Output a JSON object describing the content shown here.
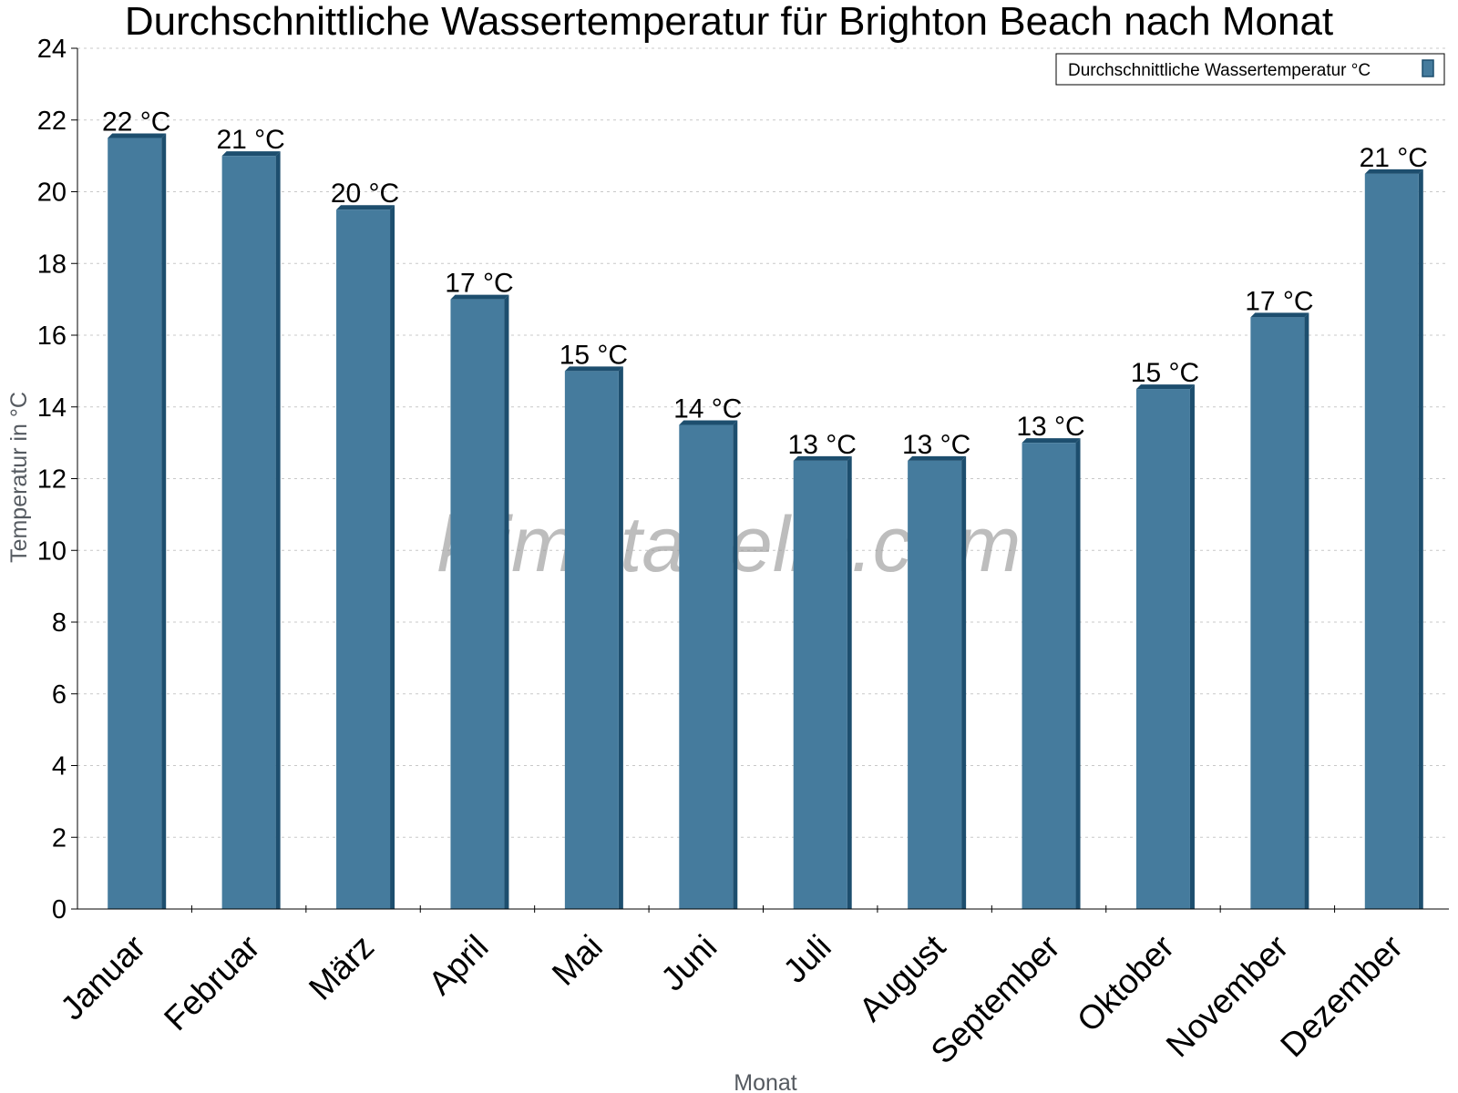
{
  "chart_data": {
    "type": "bar",
    "title": "Durchschnittliche Wassertemperatur für Brighton Beach nach Monat",
    "xlabel": "Monat",
    "ylabel": "Temperatur in °C",
    "ylim": [
      0,
      24
    ],
    "yticks": [
      "0",
      "2",
      "4",
      "6",
      "8",
      "10",
      "12",
      "14",
      "16",
      "18",
      "20",
      "22",
      "24"
    ],
    "grid": true,
    "legend_position": "top-right",
    "categories": [
      "Januar",
      "Februar",
      "März",
      "April",
      "Mai",
      "Juni",
      "Juli",
      "August",
      "September",
      "Oktober",
      "November",
      "Dezember"
    ],
    "series": [
      {
        "name": "Durchschnittliche Wassertemperatur °C",
        "values": [
          21.5,
          21.0,
          19.5,
          17.0,
          15.0,
          13.5,
          12.5,
          12.5,
          13.0,
          14.5,
          16.5,
          20.5
        ],
        "labels": [
          "22 °C",
          "21 °C",
          "20 °C",
          "17 °C",
          "15 °C",
          "14 °C",
          "13 °C",
          "13 °C",
          "13 °C",
          "15 °C",
          "17 °C",
          "21 °C"
        ],
        "color": "#457b9d",
        "edge_color": "#1d4e6e"
      }
    ]
  },
  "watermark": "klimatabelle.com"
}
